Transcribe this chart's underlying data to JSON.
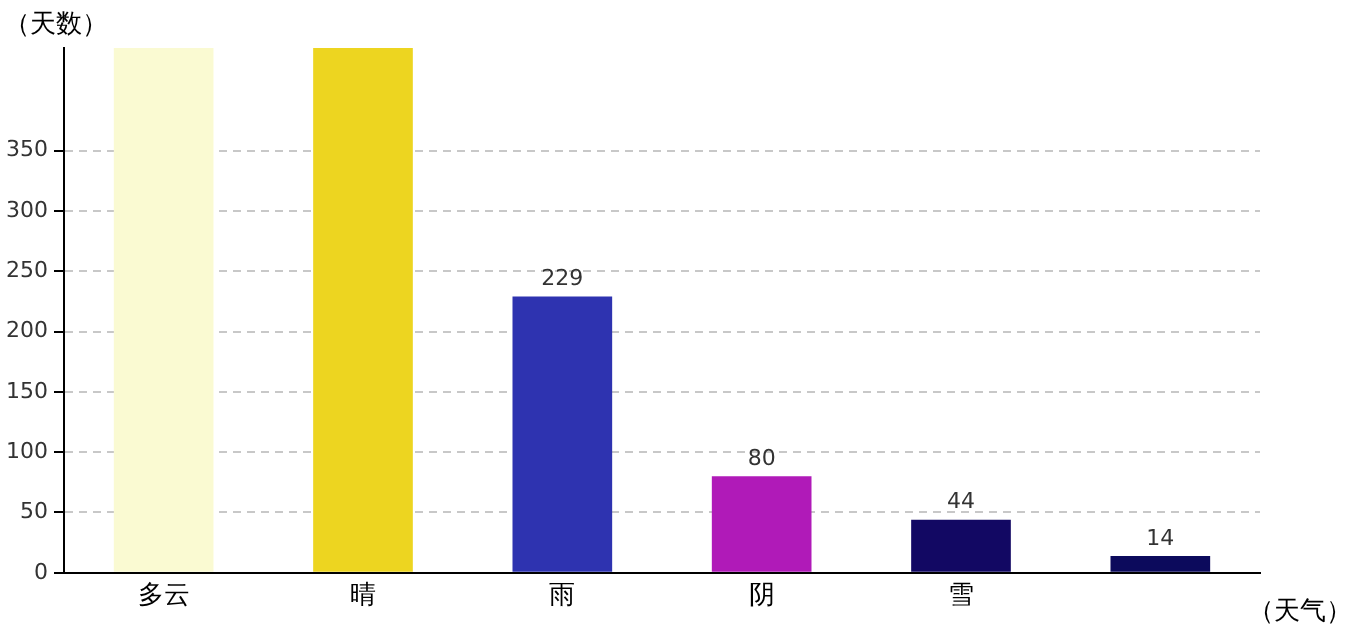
{
  "chart_data": {
    "type": "bar",
    "xlabel": "（天气）",
    "ylabel": "（天数）",
    "categories": [
      "多云",
      "晴",
      "雨",
      "阴",
      "雪",
      null
    ],
    "values": [
      435,
      435,
      229,
      80,
      44,
      14
    ],
    "colors": [
      "#fafad2",
      "#edd520",
      "#2e33b0",
      "#b01ab8",
      "#120863",
      "#0c0a5c"
    ],
    "value_labels": [
      null,
      null,
      "229",
      "80",
      "44",
      "14"
    ],
    "ylim": [
      0,
      435
    ],
    "yticks": [
      0,
      50,
      100,
      150,
      200,
      250,
      300,
      350
    ],
    "grid": "y",
    "legend": false
  }
}
